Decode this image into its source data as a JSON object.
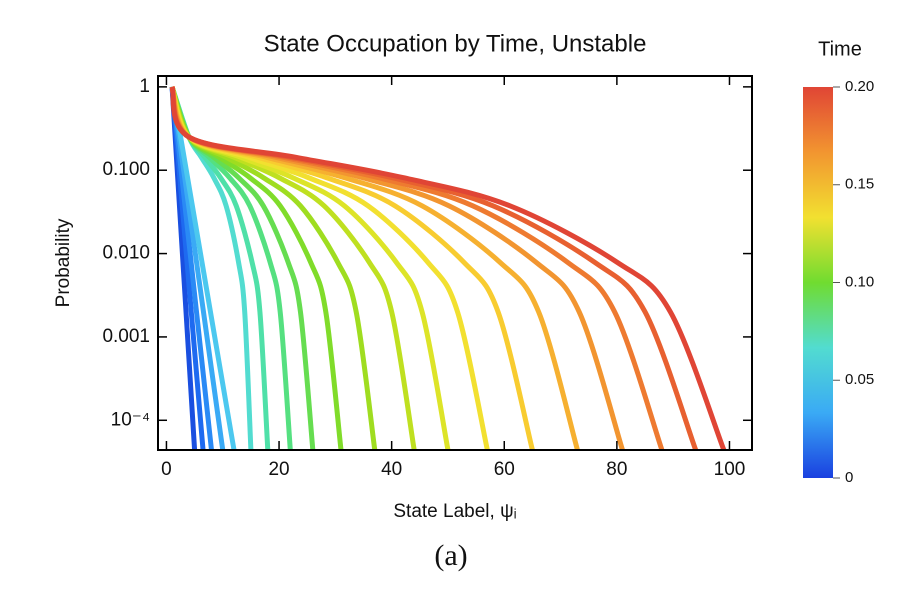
{
  "chart_data": {
    "type": "line",
    "title": "State Occupation by Time, Unstable",
    "xlabel": "State Label, ψᵢ",
    "ylabel": "Probability",
    "caption": "(a)",
    "log_y": true,
    "xlim": [
      -1.5,
      104
    ],
    "xticks": [
      0,
      20,
      40,
      60,
      80,
      100
    ],
    "ylim": [
      4.4e-05,
      1.35
    ],
    "yticks": [
      {
        "value": 1,
        "label": "1"
      },
      {
        "value": 0.1,
        "label": "0.100"
      },
      {
        "value": 0.01,
        "label": "0.010"
      },
      {
        "value": 0.001,
        "label": "0.001"
      },
      {
        "value": 0.0001,
        "label": "10⁻⁴"
      }
    ],
    "series": [
      {
        "color": "#1a4fe0",
        "x": [
          1,
          5
        ],
        "values": [
          1,
          4.4e-05
        ]
      },
      {
        "color": "#1e6af0",
        "x": [
          1,
          6.5
        ],
        "values": [
          1,
          4.4e-05
        ]
      },
      {
        "color": "#2a8af5",
        "x": [
          1,
          8
        ],
        "values": [
          1,
          4.4e-05
        ]
      },
      {
        "color": "#3aaaf5",
        "x": [
          1,
          10
        ],
        "values": [
          1,
          4.4e-05
        ]
      },
      {
        "color": "#4cc8ef",
        "x": [
          1,
          12
        ],
        "values": [
          1,
          4.4e-05
        ]
      },
      {
        "color": "#52dcd0",
        "x": [
          1,
          4,
          6.2,
          8.4,
          10.6,
          12.8,
          13.9,
          15
        ],
        "values": [
          1,
          0.25,
          0.143,
          0.0815,
          0.0374,
          0.0079,
          0.002,
          4.4e-05
        ]
      },
      {
        "color": "#4fe0a8",
        "x": [
          1,
          4,
          6.8,
          9.6,
          12.4,
          15.2,
          16.6,
          18
        ],
        "values": [
          1,
          0.25,
          0.143,
          0.0815,
          0.0374,
          0.0079,
          0.002,
          4.4e-05
        ]
      },
      {
        "color": "#55e080",
        "x": [
          1,
          4,
          7.6,
          11.2,
          14.8,
          18.4,
          20.2,
          22
        ],
        "values": [
          1,
          0.25,
          0.143,
          0.0815,
          0.0374,
          0.0079,
          0.002,
          4.4e-05
        ]
      },
      {
        "color": "#66dd50",
        "x": [
          1,
          4,
          8.4,
          12.8,
          17.2,
          21.6,
          23.8,
          26
        ],
        "values": [
          1,
          0.25,
          0.143,
          0.0815,
          0.0374,
          0.0079,
          0.002,
          4.4e-05
        ]
      },
      {
        "color": "#80dc2a",
        "x": [
          1,
          4,
          9.4,
          14.8,
          20.2,
          25.6,
          28.3,
          31
        ],
        "values": [
          1,
          0.25,
          0.143,
          0.0815,
          0.0374,
          0.0079,
          0.002,
          4.4e-05
        ]
      },
      {
        "color": "#9fdd20",
        "x": [
          1,
          4,
          10.6,
          17.2,
          23.8,
          30.4,
          33.7,
          37
        ],
        "values": [
          1,
          0.25,
          0.143,
          0.0815,
          0.0374,
          0.0079,
          0.002,
          4.4e-05
        ]
      },
      {
        "color": "#bfe020",
        "x": [
          1,
          4,
          12,
          20,
          28,
          36,
          40,
          44
        ],
        "values": [
          1,
          0.25,
          0.143,
          0.0815,
          0.0374,
          0.0079,
          0.002,
          4.4e-05
        ]
      },
      {
        "color": "#dde428",
        "x": [
          1,
          4,
          13.2,
          22.4,
          31.6,
          40.8,
          45.4,
          50
        ],
        "values": [
          1,
          0.25,
          0.143,
          0.0815,
          0.0374,
          0.0079,
          0.002,
          4.4e-05
        ]
      },
      {
        "color": "#f2e030",
        "x": [
          1,
          4,
          14.6,
          25.2,
          35.8,
          46.4,
          51.7,
          57
        ],
        "values": [
          1,
          0.25,
          0.143,
          0.0815,
          0.0374,
          0.0079,
          0.002,
          4.4e-05
        ]
      },
      {
        "color": "#f8cc30",
        "x": [
          1,
          4,
          16.2,
          28.4,
          40.6,
          52.8,
          58.9,
          65
        ],
        "values": [
          1,
          0.25,
          0.143,
          0.0815,
          0.0374,
          0.0079,
          0.002,
          4.4e-05
        ]
      },
      {
        "color": "#f6b030",
        "x": [
          1,
          4,
          17.8,
          31.6,
          45.4,
          59.2,
          66.1,
          73
        ],
        "values": [
          1,
          0.25,
          0.143,
          0.0815,
          0.0374,
          0.0079,
          0.002,
          4.4e-05
        ]
      },
      {
        "color": "#f29530",
        "x": [
          1,
          4,
          19.4,
          34.8,
          50.2,
          65.6,
          73.3,
          81
        ],
        "values": [
          1,
          0.25,
          0.143,
          0.0815,
          0.0374,
          0.0079,
          0.002,
          4.4e-05
        ]
      },
      {
        "color": "#ee7a30",
        "x": [
          1,
          4,
          20.8,
          37.6,
          54.4,
          71.2,
          79.6,
          88
        ],
        "values": [
          1,
          0.25,
          0.143,
          0.0815,
          0.0374,
          0.0079,
          0.002,
          4.4e-05
        ]
      },
      {
        "color": "#e86030",
        "x": [
          1,
          4,
          22,
          40,
          58,
          76,
          85,
          94
        ],
        "values": [
          1,
          0.25,
          0.143,
          0.0815,
          0.0374,
          0.0079,
          0.002,
          4.4e-05
        ]
      },
      {
        "color": "#e04535",
        "x": [
          1,
          4,
          23,
          42,
          61,
          80,
          89.5,
          99
        ],
        "values": [
          1,
          0.25,
          0.143,
          0.0815,
          0.0374,
          0.0079,
          0.002,
          4.4e-05
        ]
      }
    ],
    "colorbar": {
      "title": "Time",
      "lim": [
        0,
        0.2
      ],
      "ticks": [
        0,
        0.05,
        {
          "value": 0.1,
          "label": "0.10"
        },
        0.15,
        {
          "value": 0.2,
          "label": "0.20"
        }
      ],
      "colors": [
        "#1a40e0",
        "#3aaaf5",
        "#52dcd0",
        "#70dc30",
        "#f2e030",
        "#f29530",
        "#e04535"
      ]
    }
  }
}
